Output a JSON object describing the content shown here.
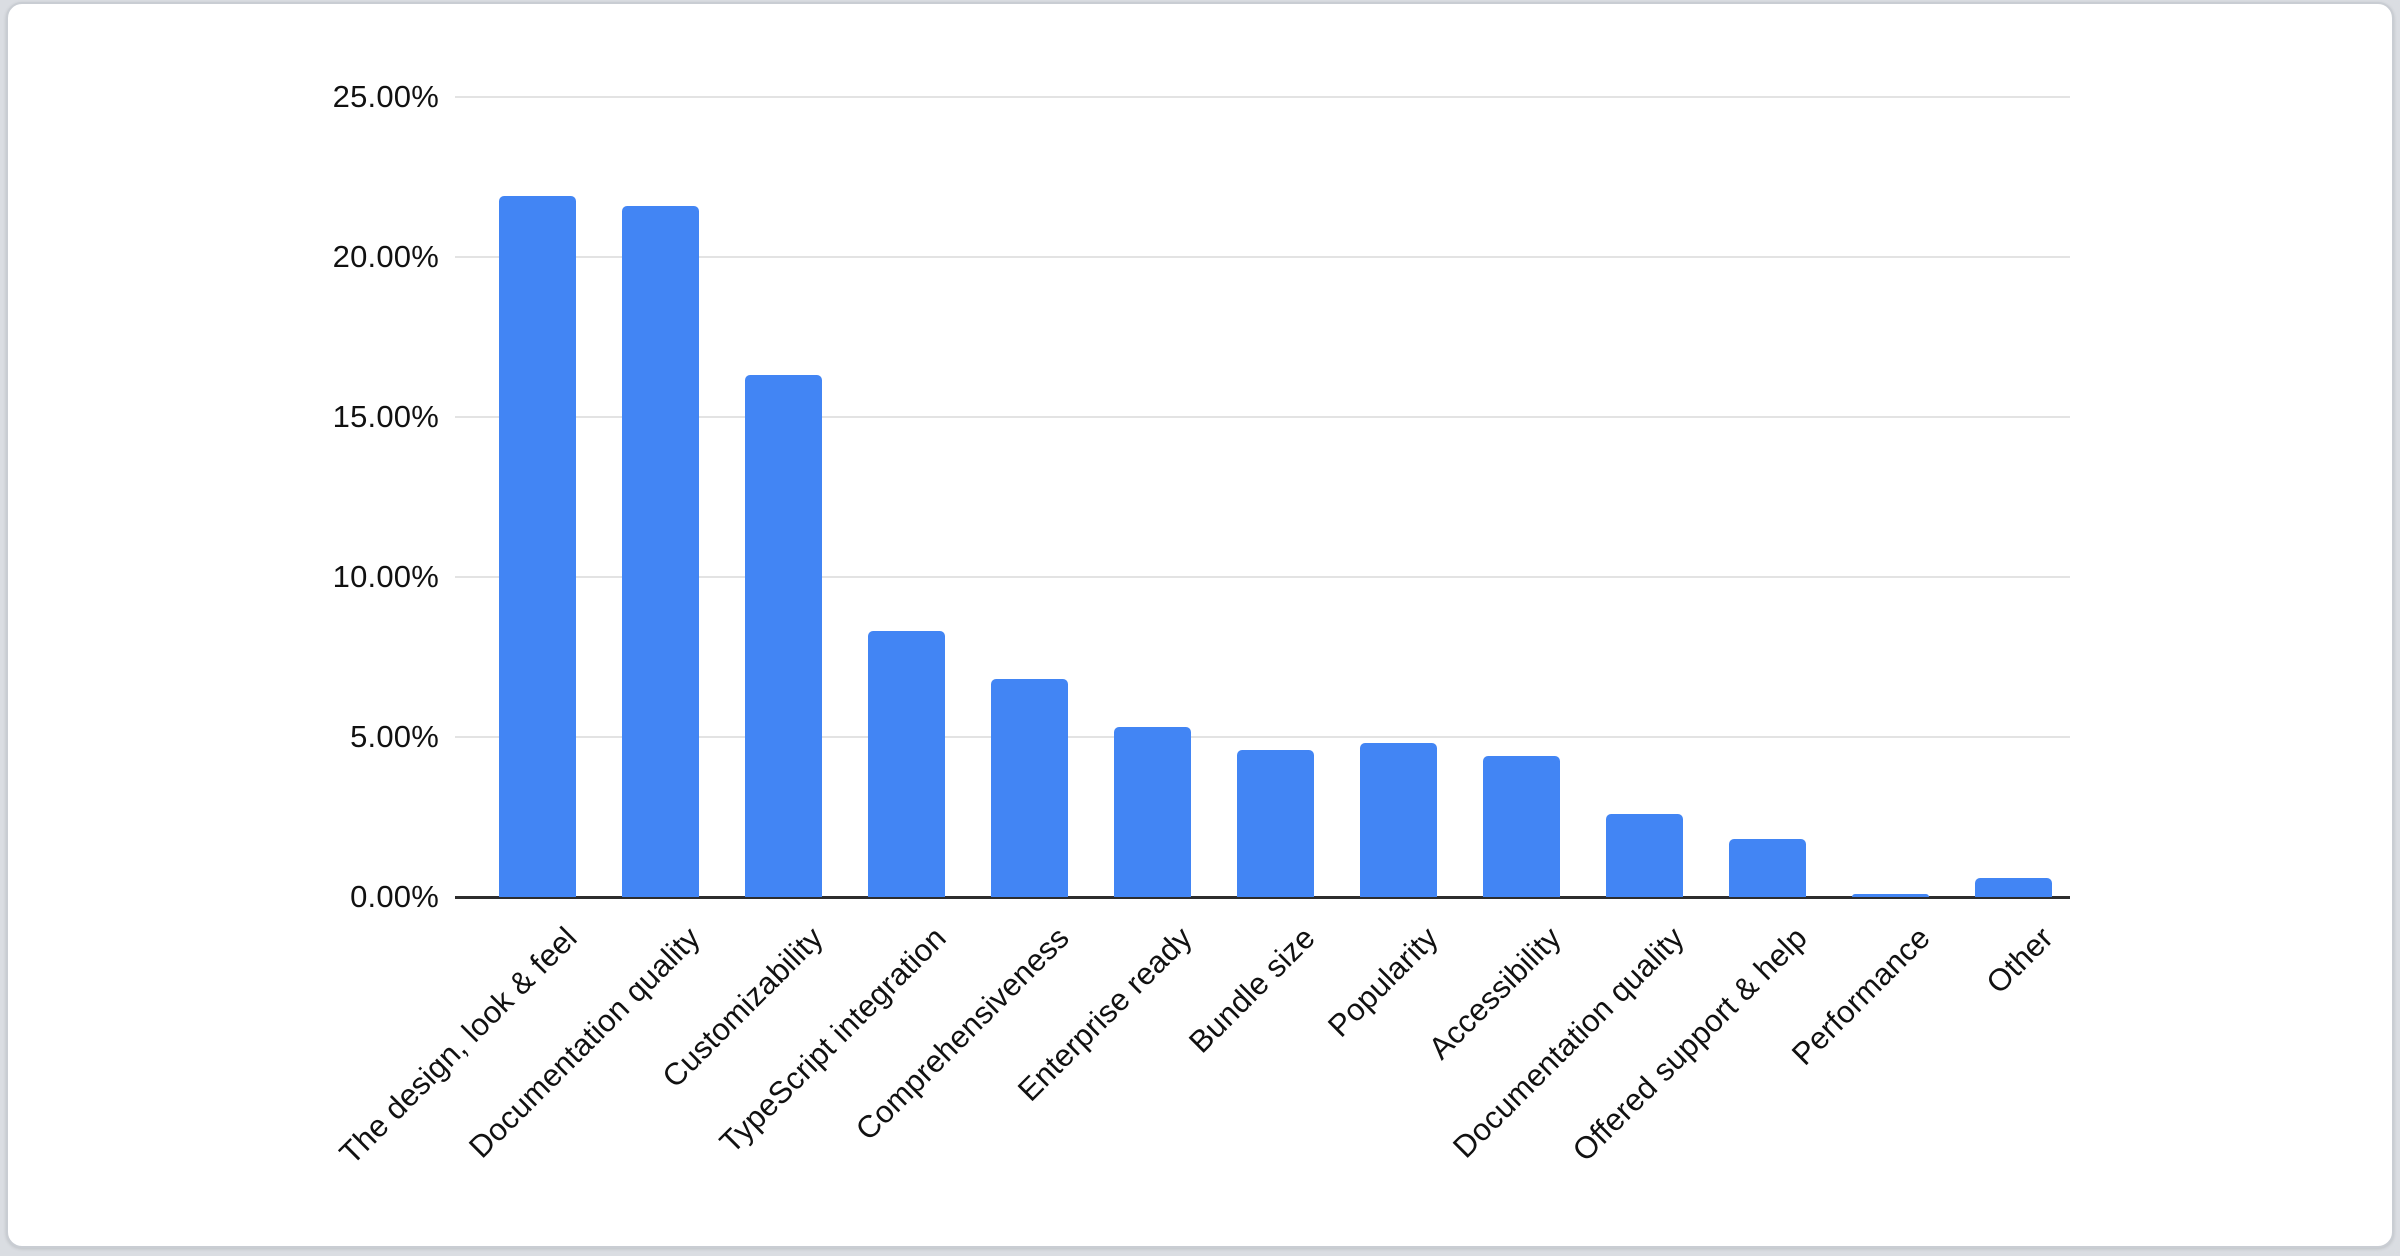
{
  "page": {
    "background_color": "#dadde2"
  },
  "card": {
    "background_color": "#ffffff",
    "border_color": "#c9cdd3"
  },
  "chart_data": {
    "type": "bar",
    "title": "",
    "xlabel": "",
    "ylabel": "",
    "categories": [
      "The design, look & feel",
      "Documentation quality",
      "Customizability",
      "TypeScript integration",
      "Comprehensiveness",
      "Enterprise ready",
      "Bundle size",
      "Popularity",
      "Accessibility",
      "Documentation quality",
      "Offered support & help",
      "Performance",
      "Other"
    ],
    "values": [
      21.9,
      21.6,
      16.3,
      8.3,
      6.8,
      5.3,
      4.6,
      4.8,
      4.4,
      2.6,
      1.8,
      0.1,
      0.6
    ],
    "value_unit": "%",
    "ylim": [
      0,
      25
    ],
    "ytick_values": [
      0,
      5,
      10,
      15,
      20,
      25
    ],
    "yticks": [
      "0.00%",
      "5.00%",
      "10.00%",
      "15.00%",
      "20.00%",
      "25.00%"
    ],
    "grid": true,
    "legend": "none",
    "x_label_rotation_deg": 45,
    "bar_color": "#4285f4",
    "gridline_color": "#e3e3e3",
    "axis_line_color": "#2d2d2d",
    "text_color": "#111111"
  }
}
